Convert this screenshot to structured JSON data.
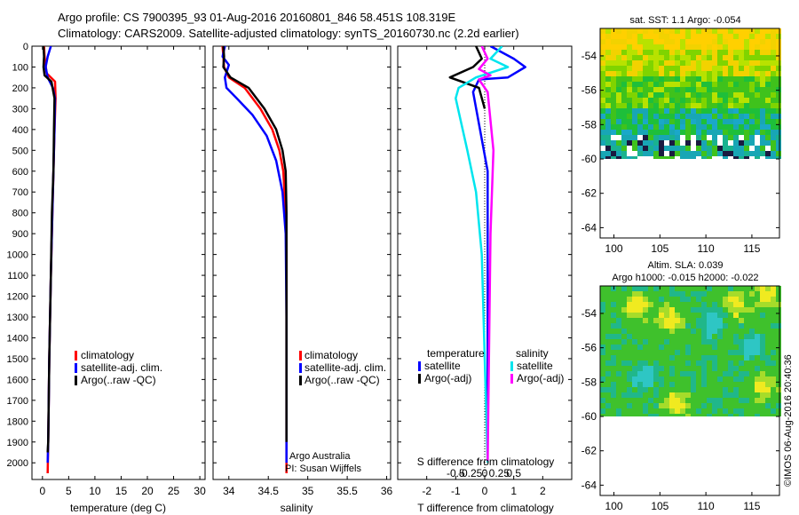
{
  "header": {
    "line1": "Argo profile: CS 7900395_93 01-Aug-2016 20160801_846 58.451S 108.319E",
    "line2": "Climatology: CARS2009. Satellite-adjusted climatology: synTS_20160730.nc (2.2d earlier)"
  },
  "colors": {
    "climatology": "#ff0000",
    "satellite": "#0000ff",
    "argo": "#000000",
    "sat_salinity": "#00e5ee",
    "argo_salinity": "#ff00ff"
  },
  "legend": {
    "climatology": "climatology",
    "satellite_adj": "satellite-adj. clim.",
    "argo_raw": "Argo(..raw -QC)",
    "temperature": "temperature",
    "salinity": "salinity",
    "satellite": "satellite",
    "argo_adj": "Argo(-adj)"
  },
  "credit": {
    "line1": "Argo Australia",
    "line2": "PI: Susan Wijffels"
  },
  "map1": {
    "title": "sat. SST: 1.1 Argo: -0.054"
  },
  "map2": {
    "title1": "Altim. SLA: 0.039",
    "title2": "Argo h1000: -0.015 h2000: -0.022"
  },
  "watermark": "©IMOS 06-Aug-2016 20:40:36",
  "chart_data": [
    {
      "type": "line",
      "xlabel": "temperature (deg C)",
      "xlim": [
        -2,
        31
      ],
      "ylim": [
        2080,
        0
      ],
      "xticks": [
        0,
        5,
        10,
        15,
        20,
        25,
        30
      ],
      "yticks": [
        0,
        100,
        200,
        300,
        400,
        500,
        600,
        700,
        800,
        900,
        1000,
        1100,
        1200,
        1300,
        1400,
        1500,
        1600,
        1700,
        1800,
        1900,
        2000
      ],
      "series": [
        {
          "name": "climatology",
          "x": [
            0.3,
            0.4,
            0.8,
            2.4,
            2.5,
            2.3,
            2.1,
            1.9,
            1.6,
            1.3,
            1.1,
            1.0
          ],
          "y": [
            0,
            50,
            130,
            170,
            250,
            400,
            600,
            800,
            1100,
            1500,
            1900,
            2050
          ]
        },
        {
          "name": "satellite-adj. clim.",
          "x": [
            1.6,
            1.0,
            0.6,
            1.0,
            2.0,
            2.4,
            2.3,
            2.1,
            1.9,
            1.6,
            1.3,
            1.1,
            1.0
          ],
          "y": [
            0,
            50,
            100,
            150,
            200,
            250,
            400,
            600,
            800,
            1100,
            1500,
            1900,
            2000
          ]
        },
        {
          "name": "Argo(..raw -QC)",
          "x": [
            0.2,
            0.3,
            0.2,
            0.4,
            1.7,
            2.3,
            2.2,
            2.1,
            1.8,
            1.6,
            1.3,
            1.1,
            1.0
          ],
          "y": [
            0,
            50,
            100,
            140,
            170,
            250,
            400,
            600,
            800,
            1100,
            1500,
            1900,
            1950
          ]
        }
      ]
    },
    {
      "type": "line",
      "xlabel": "salinity",
      "xlim": [
        33.8,
        36.05
      ],
      "ylim": [
        2080,
        0
      ],
      "xticks": [
        34,
        34.5,
        35,
        35.5,
        36
      ],
      "xticklabels": [
        "34",
        "34.5",
        "35",
        "35.5",
        "36"
      ],
      "series": [
        {
          "name": "climatology",
          "x": [
            33.92,
            33.93,
            33.94,
            34.0,
            34.2,
            34.4,
            34.55,
            34.64,
            34.69,
            34.72,
            34.73,
            34.73,
            34.73
          ],
          "y": [
            0,
            50,
            100,
            150,
            200,
            300,
            400,
            500,
            600,
            800,
            1000,
            1500,
            2050
          ]
        },
        {
          "name": "satellite-adj. clim.",
          "x": [
            33.95,
            33.92,
            34.0,
            33.95,
            33.97,
            34.1,
            34.3,
            34.48,
            34.6,
            34.68,
            34.72,
            34.73,
            34.73
          ],
          "y": [
            0,
            50,
            90,
            150,
            200,
            250,
            330,
            430,
            550,
            700,
            900,
            1300,
            2000
          ]
        },
        {
          "name": "Argo(..raw -QC)",
          "x": [
            33.93,
            33.94,
            33.93,
            34.02,
            34.25,
            34.45,
            34.6,
            34.68,
            34.72,
            34.73,
            34.73,
            34.73
          ],
          "y": [
            0,
            50,
            100,
            150,
            200,
            300,
            400,
            500,
            600,
            800,
            1000,
            1900
          ]
        }
      ]
    },
    {
      "type": "line",
      "xlabel": "T difference from climatology",
      "top_label": "S difference from climatology",
      "xlim": [
        -3,
        3
      ],
      "ylim": [
        2080,
        0
      ],
      "xticks": [
        -2,
        -1,
        0,
        1,
        2
      ],
      "xticklabels": [
        "-2",
        "-1",
        "0",
        "1",
        "2"
      ],
      "xticks_S": [
        -1,
        -0.5,
        0,
        0.5,
        1
      ],
      "xticklabels_S": [
        "-0.5",
        "-0.25",
        "0",
        "0.25",
        "0.5"
      ],
      "series": [
        {
          "name": "temperature satellite",
          "x": [
            0.2,
            1.0,
            1.4,
            0.8,
            -0.2,
            -0.4,
            0.1,
            0.1,
            0.1
          ],
          "y": [
            0,
            60,
            100,
            150,
            160,
            220,
            600,
            1200,
            1990
          ]
        },
        {
          "name": "temperature Argo(-adj)",
          "x": [
            -0.3,
            -0.1,
            -0.4,
            -1.2,
            -0.2,
            0.0
          ],
          "y": [
            0,
            60,
            100,
            150,
            200,
            300
          ]
        },
        {
          "name": "salinity satellite",
          "x": [
            0.6,
            0.2,
            0.8,
            -0.3,
            -0.9,
            -1.0,
            -0.6,
            -0.3,
            -0.1,
            0.1
          ],
          "y": [
            0,
            60,
            100,
            150,
            200,
            250,
            500,
            700,
            1000,
            2000
          ]
        },
        {
          "name": "salinity Argo(-adj)",
          "x": [
            -0.1,
            0.1,
            -0.2,
            0.2,
            -0.2,
            0.1,
            0.3,
            0.2,
            0.1
          ],
          "y": [
            0,
            60,
            110,
            140,
            160,
            220,
            500,
            900,
            1990
          ]
        }
      ]
    },
    {
      "type": "heatmap",
      "title": "sat. SST: 1.1 Argo: -0.054",
      "xlim": [
        98.5,
        118
      ],
      "ylim": [
        -64.6,
        -52.4
      ],
      "xticks": [
        100,
        105,
        110,
        115
      ],
      "yticks": [
        -54,
        -56,
        -58,
        -60,
        -62,
        -64
      ]
    },
    {
      "type": "heatmap",
      "title": "Altim. SLA: 0.039",
      "xlim": [
        98.5,
        118
      ],
      "ylim": [
        -64.6,
        -52.4
      ],
      "xticks": [
        100,
        105,
        110,
        115
      ],
      "yticks": [
        -54,
        -56,
        -58,
        -60,
        -62,
        -64
      ]
    }
  ]
}
